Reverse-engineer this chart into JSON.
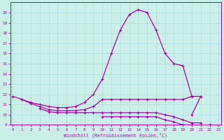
{
  "xlabel": "Windchill (Refroidissement éolien,°C)",
  "background_color": "#cceee8",
  "grid_color": "#aadddd",
  "line_color": "#aa00aa",
  "x_hours": [
    0,
    1,
    2,
    3,
    4,
    5,
    6,
    7,
    8,
    9,
    10,
    11,
    12,
    13,
    14,
    15,
    16,
    17,
    18,
    19,
    20,
    21,
    22,
    23
  ],
  "series_main": [
    11.8,
    11.5,
    11.2,
    11.0,
    10.8,
    10.7,
    10.7,
    10.8,
    11.2,
    12.0,
    13.5,
    16.0,
    18.3,
    19.8,
    20.3,
    20.0,
    18.3,
    16.0,
    15.0,
    14.8,
    11.8,
    null,
    null,
    null
  ],
  "series_flat1": [
    null,
    11.5,
    11.1,
    10.8,
    10.5,
    10.4,
    10.4,
    10.4,
    10.5,
    10.8,
    11.5,
    11.5,
    11.5,
    11.5,
    11.5,
    11.5,
    11.5,
    11.5,
    11.5,
    11.5,
    11.8,
    11.8,
    null,
    null
  ],
  "series_flat2": [
    null,
    null,
    null,
    10.6,
    10.3,
    10.2,
    10.2,
    10.2,
    10.2,
    10.2,
    10.2,
    10.2,
    10.2,
    10.2,
    10.2,
    10.2,
    10.2,
    10.0,
    9.8,
    9.5,
    9.2,
    9.2,
    null,
    null
  ],
  "series_flat3": [
    null,
    null,
    null,
    null,
    null,
    null,
    null,
    null,
    null,
    null,
    9.8,
    9.8,
    9.8,
    9.8,
    9.8,
    9.8,
    9.8,
    9.5,
    9.3,
    9.0,
    9.0,
    null,
    9.0,
    8.8
  ],
  "series_spike": [
    null,
    null,
    null,
    null,
    null,
    null,
    null,
    null,
    null,
    null,
    null,
    null,
    null,
    null,
    null,
    null,
    null,
    null,
    null,
    null,
    10.0,
    11.8,
    null,
    null
  ],
  "series_end": [
    null,
    null,
    null,
    null,
    null,
    null,
    null,
    null,
    null,
    null,
    null,
    null,
    null,
    null,
    null,
    null,
    null,
    null,
    null,
    null,
    null,
    null,
    9.0,
    8.8
  ],
  "ylim": [
    9,
    21
  ],
  "yticks": [
    9,
    10,
    11,
    12,
    13,
    14,
    15,
    16,
    17,
    18,
    19,
    20
  ],
  "xlim": [
    -0.3,
    23.3
  ],
  "xticks": [
    0,
    1,
    2,
    3,
    4,
    5,
    6,
    7,
    8,
    9,
    10,
    11,
    12,
    13,
    14,
    15,
    16,
    17,
    18,
    19,
    20,
    21,
    22,
    23
  ]
}
